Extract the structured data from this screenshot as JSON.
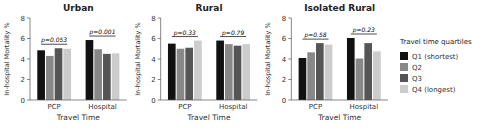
{
  "chart_data": [
    {
      "type": "bar",
      "title": "Urban",
      "categories": [
        "PCP",
        "Hospital"
      ],
      "series": [
        {
          "name": "Q1 (shortest)",
          "color": "#111111",
          "values": [
            4.85,
            5.85
          ]
        },
        {
          "name": "Q2",
          "color": "#888888",
          "values": [
            4.3,
            4.95
          ]
        },
        {
          "name": "Q3",
          "color": "#555555",
          "values": [
            5.05,
            4.5
          ]
        },
        {
          "name": "Q4 (longest)",
          "color": "#cccccc",
          "values": [
            5.0,
            4.55
          ]
        }
      ],
      "annotations": [
        "p=0.053",
        "p=0.001"
      ],
      "xlabel": "Travel Time",
      "ylabel": "In-hospital Mortality %",
      "ylim": [
        0,
        8
      ],
      "yticks": [
        0,
        2,
        4,
        6,
        8
      ],
      "grid": false,
      "legend": "right",
      "legend_title": "Travel time quartiles"
    },
    {
      "type": "bar",
      "title": "Rural",
      "categories": [
        "PCP",
        "Hospital"
      ],
      "series": [
        {
          "name": "Q1 (shortest)",
          "color": "#111111",
          "values": [
            5.5,
            5.8
          ]
        },
        {
          "name": "Q2",
          "color": "#888888",
          "values": [
            5.0,
            5.45
          ]
        },
        {
          "name": "Q3",
          "color": "#555555",
          "values": [
            5.1,
            5.3
          ]
        },
        {
          "name": "Q4 (longest)",
          "color": "#cccccc",
          "values": [
            5.8,
            5.45
          ]
        }
      ],
      "annotations": [
        "p=0.33",
        "p=0.79"
      ],
      "xlabel": "Travel Time",
      "ylabel": "In-hospital Mortality %",
      "ylim": [
        0,
        8
      ],
      "yticks": [
        0,
        2,
        4,
        6,
        8
      ],
      "grid": false
    },
    {
      "type": "bar",
      "title": "Isolated Rural",
      "categories": [
        "PCP",
        "Hospital"
      ],
      "series": [
        {
          "name": "Q1 (shortest)",
          "color": "#111111",
          "values": [
            4.1,
            6.05
          ]
        },
        {
          "name": "Q2",
          "color": "#888888",
          "values": [
            4.65,
            4.05
          ]
        },
        {
          "name": "Q3",
          "color": "#555555",
          "values": [
            5.55,
            5.55
          ]
        },
        {
          "name": "Q4 (longest)",
          "color": "#cccccc",
          "values": [
            5.4,
            4.75
          ]
        }
      ],
      "annotations": [
        "p=0.58",
        "p=0.23"
      ],
      "xlabel": "Travel Time",
      "ylabel": "In-hospital Mortality %",
      "ylim": [
        0,
        8
      ],
      "yticks": [
        0,
        2,
        4,
        6,
        8
      ],
      "grid": false
    }
  ]
}
